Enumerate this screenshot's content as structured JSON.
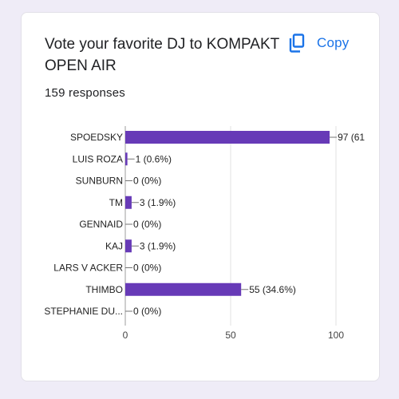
{
  "card": {
    "title": "Vote your favorite DJ to KOMPAKT OPEN AIR",
    "copy_label": "Copy",
    "responses": "159 responses"
  },
  "colors": {
    "bar": "#673ab7",
    "accent": "#1a73e8",
    "grid": "#e0e0e0",
    "text": "#202124"
  },
  "icons": {
    "copy": "copy-icon"
  },
  "chart_data": {
    "type": "bar",
    "orientation": "horizontal",
    "title": "Vote your favorite DJ to KOMPAKT OPEN AIR",
    "categories": [
      "SPOEDSKY",
      "LUIS ROZA",
      "SUNBURN",
      "TM",
      "GENNAID",
      "KAJ",
      "LARS V ACKER",
      "THIMBO",
      "STEPHANIE DU..."
    ],
    "values": [
      97,
      1,
      0,
      3,
      0,
      3,
      0,
      55,
      0
    ],
    "data_labels": [
      "97 (61",
      "1 (0.6%)",
      "0 (0%)",
      "3 (1.9%)",
      "0 (0%)",
      "3 (1.9%)",
      "0 (0%)",
      "55 (34.6%)",
      "0 (0%)"
    ],
    "xlim": [
      0,
      100
    ],
    "xticks": [
      "0",
      "50",
      "100"
    ],
    "xlabel": "",
    "ylabel": "",
    "grid": true
  }
}
